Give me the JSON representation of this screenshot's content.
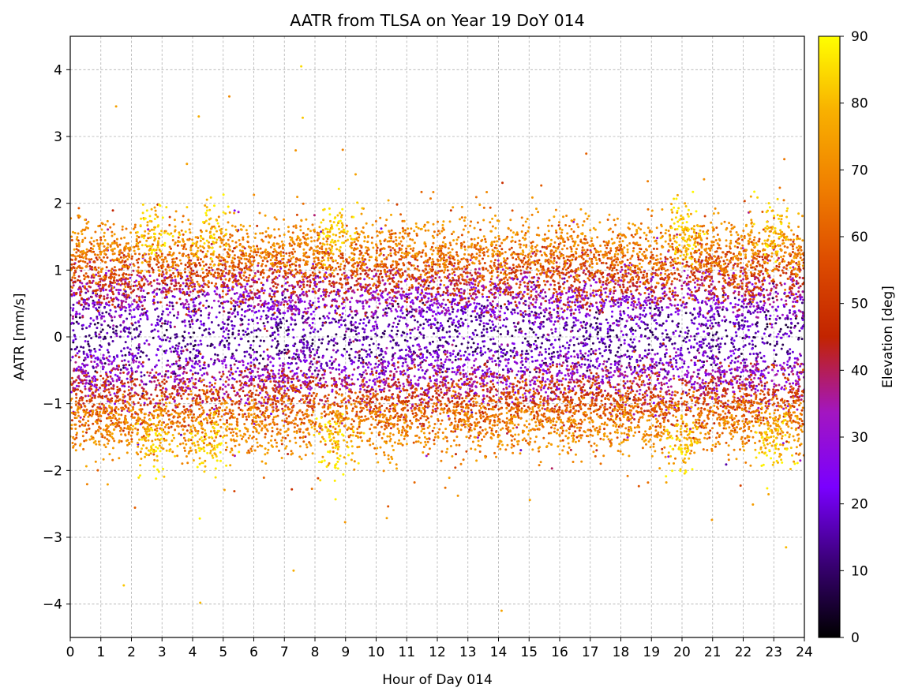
{
  "chart_data": {
    "type": "scatter",
    "title": "AATR from TLSA on Year 19 DoY 014",
    "xlabel": "Hour of Day 014",
    "ylabel": "AATR [mm/s]",
    "xlim": [
      0,
      24
    ],
    "ylim": [
      -4.5,
      4.5
    ],
    "xticks": [
      "0",
      "1",
      "2",
      "3",
      "4",
      "5",
      "6",
      "7",
      "8",
      "9",
      "10",
      "11",
      "12",
      "13",
      "14",
      "15",
      "16",
      "17",
      "18",
      "19",
      "20",
      "21",
      "22",
      "23",
      "24"
    ],
    "yticks": [
      "4",
      "3",
      "2",
      "1",
      "0",
      "−1",
      "−2",
      "−3",
      "−4"
    ],
    "ytick_values": [
      4,
      3,
      2,
      1,
      0,
      -1,
      -2,
      -3,
      -4
    ],
    "grid": true,
    "colorbar": {
      "label": "Elevation [deg]",
      "range": [
        0,
        90
      ],
      "ticks": [
        "0",
        "10",
        "20",
        "30",
        "40",
        "50",
        "60",
        "70",
        "80",
        "90"
      ],
      "tick_values": [
        0,
        10,
        20,
        30,
        40,
        50,
        60,
        70,
        80,
        90
      ],
      "colormap": "gnuplot",
      "colors": [
        "#000000",
        "#3a0076",
        "#7a00ff",
        "#a316c0",
        "#c22400",
        "#dd4c00",
        "#f07f00",
        "#f8b000",
        "#ffff00"
      ]
    },
    "series": [
      {
        "description": "dense band of AATR samples; |AATR| grows with elevation",
        "x_range": [
          0,
          24
        ],
        "bulk_y_range": [
          -1.8,
          1.8
        ],
        "outlier_y_range": [
          -4.1,
          4.1
        ],
        "high_elevation_peaks_hours": [
          2.7,
          4.6,
          8.7,
          20.1,
          23.0
        ],
        "extreme_points": [
          {
            "x": 7.55,
            "y": 4.05,
            "elev": 85
          },
          {
            "x": 5.2,
            "y": 3.6,
            "elev": 70
          },
          {
            "x": 1.5,
            "y": 3.45,
            "elev": 75
          },
          {
            "x": 4.2,
            "y": 3.3,
            "elev": 78
          },
          {
            "x": 7.6,
            "y": 3.28,
            "elev": 82
          },
          {
            "x": 4.25,
            "y": -3.98,
            "elev": 80
          },
          {
            "x": 1.75,
            "y": -3.72,
            "elev": 82
          },
          {
            "x": 14.1,
            "y": -4.1,
            "elev": 76
          },
          {
            "x": 7.3,
            "y": -3.5,
            "elev": 78
          },
          {
            "x": 23.4,
            "y": -3.15,
            "elev": 80
          }
        ]
      }
    ]
  }
}
